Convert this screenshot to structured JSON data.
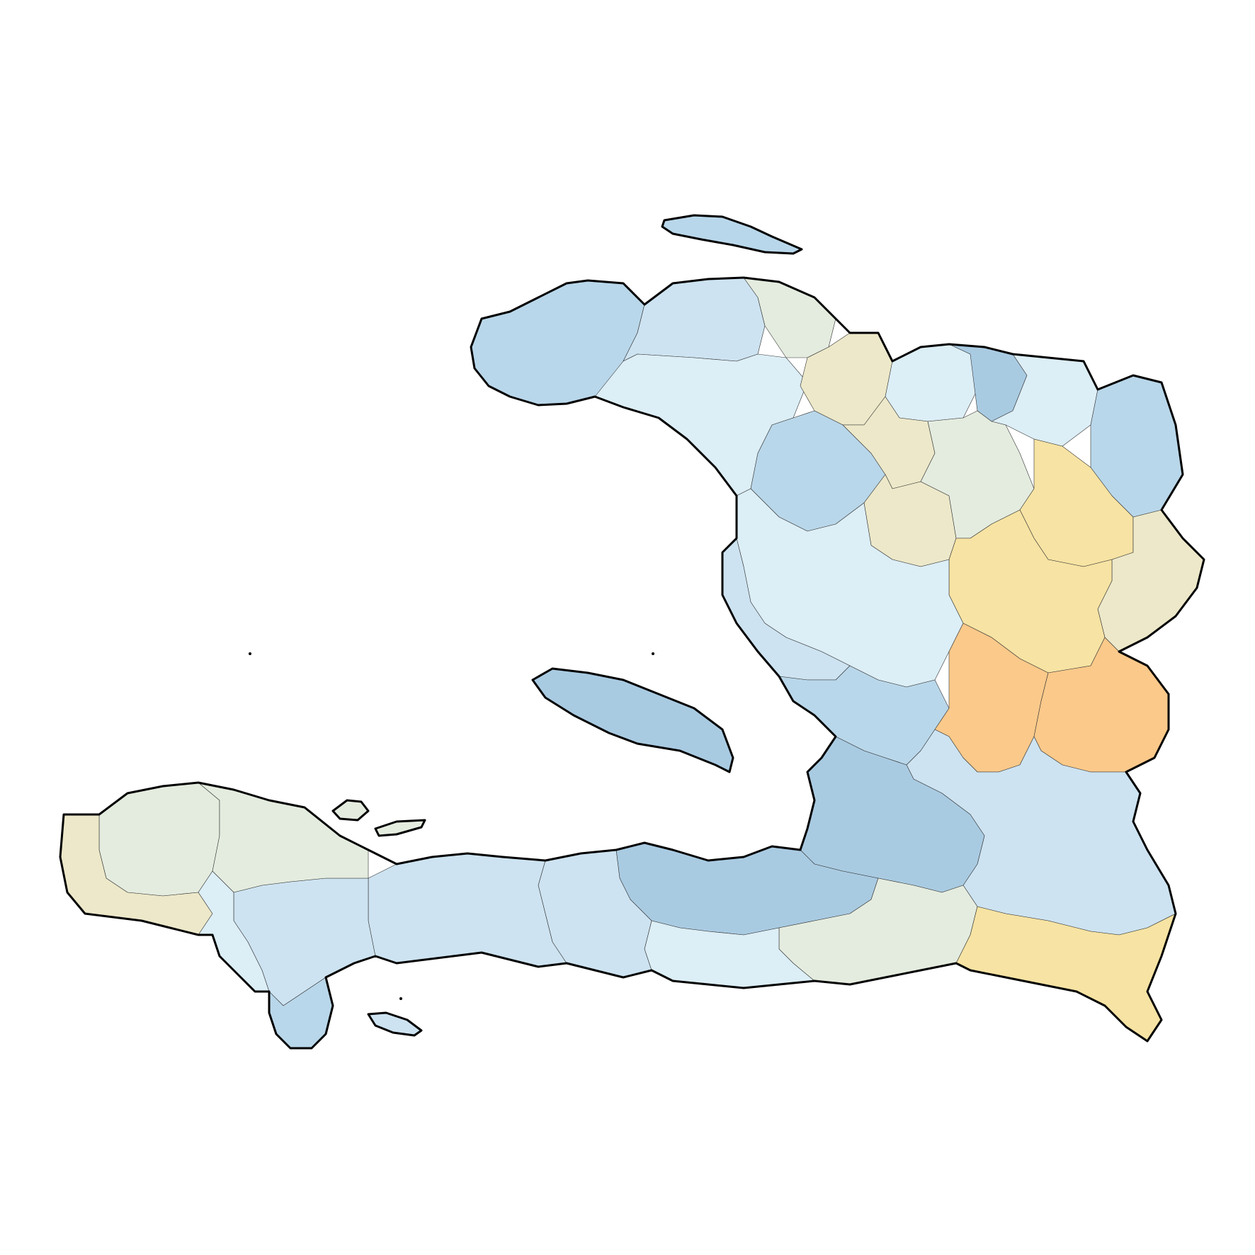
{
  "map": {
    "type": "choropleth",
    "palette": {
      "blue_dark": "#a9cbe2",
      "blue_mid": "#b9d7ea",
      "blue_light": "#cde3f1",
      "blue_pale": "#dceef6",
      "neutral": "#e4ecdf",
      "beige": "#ece8c9",
      "yellow": "#f7e3a3",
      "orange": "#fbc98a",
      "nodata": "#e0e0e0",
      "border": "#000000"
    },
    "regions": [
      {
        "id": "nw-peninsula",
        "class": "blue_mid"
      },
      {
        "id": "north-west-upper",
        "class": "blue_light"
      },
      {
        "id": "north-west-lower",
        "class": "blue_pale"
      },
      {
        "id": "north-coast-a",
        "class": "neutral"
      },
      {
        "id": "north-coast-b",
        "class": "beige"
      },
      {
        "id": "north-coast-c",
        "class": "blue_pale"
      },
      {
        "id": "north-coast-d",
        "class": "blue_dark"
      },
      {
        "id": "north-east-a",
        "class": "blue_pale"
      },
      {
        "id": "north-east-b",
        "class": "blue_mid"
      },
      {
        "id": "artibonite-north",
        "class": "blue_mid"
      },
      {
        "id": "central-north-a",
        "class": "beige"
      },
      {
        "id": "central-north-b",
        "class": "beige"
      },
      {
        "id": "central-north-c",
        "class": "neutral"
      },
      {
        "id": "central-plateau-a",
        "class": "yellow"
      },
      {
        "id": "central-plateau-b",
        "class": "beige"
      },
      {
        "id": "central-plateau-c",
        "class": "yellow"
      },
      {
        "id": "artibonite-valley",
        "class": "blue_pale"
      },
      {
        "id": "artibonite-coast",
        "class": "blue_light"
      },
      {
        "id": "ouest-north",
        "class": "blue_mid"
      },
      {
        "id": "centre-south-a",
        "class": "orange"
      },
      {
        "id": "centre-south-b",
        "class": "orange"
      },
      {
        "id": "ouest-east",
        "class": "blue_light"
      },
      {
        "id": "ouest-core",
        "class": "blue_dark"
      },
      {
        "id": "ouest-west",
        "class": "blue_dark"
      },
      {
        "id": "southeast-a",
        "class": "neutral"
      },
      {
        "id": "southeast-b",
        "class": "yellow"
      },
      {
        "id": "southeast-c",
        "class": "blue_pale"
      },
      {
        "id": "nippes",
        "class": "blue_light"
      },
      {
        "id": "south-a",
        "class": "blue_light"
      },
      {
        "id": "south-b",
        "class": "blue_light"
      },
      {
        "id": "south-c",
        "class": "blue_mid"
      },
      {
        "id": "grandanse-a",
        "class": "neutral"
      },
      {
        "id": "grandanse-b",
        "class": "beige"
      },
      {
        "id": "grandanse-c",
        "class": "neutral"
      },
      {
        "id": "grandanse-d",
        "class": "blue_pale"
      },
      {
        "id": "tortuga-island",
        "class": "blue_mid"
      },
      {
        "id": "gonave-island",
        "class": "blue_dark"
      },
      {
        "id": "cayemites-island",
        "class": "neutral"
      },
      {
        "id": "vache-island",
        "class": "blue_light"
      }
    ]
  }
}
